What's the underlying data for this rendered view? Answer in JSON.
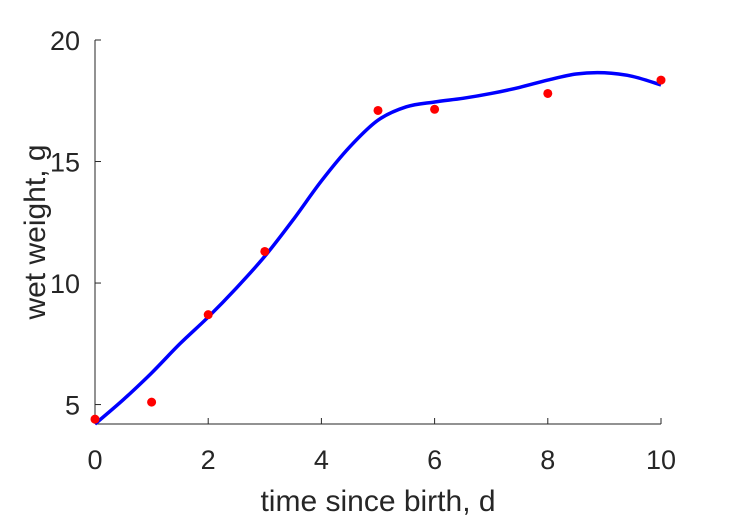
{
  "chart_data": {
    "type": "scatter",
    "title": "",
    "xlabel": "time since birth, d",
    "ylabel": "wet weight, g",
    "xlim": [
      0,
      10
    ],
    "ylim": [
      4.2,
      20
    ],
    "x_ticks": [
      0,
      2,
      4,
      6,
      8,
      10
    ],
    "y_ticks": [
      5,
      10,
      15,
      20
    ],
    "grid": false,
    "legend": "none",
    "series": [
      {
        "kind": "points",
        "color": "#ff0000",
        "x": [
          0,
          1,
          2,
          3,
          5,
          6,
          8,
          10
        ],
        "y": [
          4.4,
          5.1,
          8.7,
          11.3,
          17.1,
          17.15,
          17.8,
          18.35
        ]
      },
      {
        "kind": "line",
        "color": "#0000ff",
        "x": [
          0,
          0.5,
          1,
          1.5,
          2,
          2.5,
          3,
          3.5,
          4,
          4.5,
          5,
          5.5,
          6,
          6.5,
          7,
          7.5,
          8,
          8.5,
          9,
          9.5,
          10
        ],
        "y": [
          4.2,
          5.2,
          6.3,
          7.5,
          8.6,
          9.8,
          11.1,
          12.6,
          14.2,
          15.6,
          16.7,
          17.25,
          17.45,
          17.6,
          17.8,
          18.05,
          18.35,
          18.6,
          18.65,
          18.5,
          18.15
        ]
      }
    ]
  }
}
